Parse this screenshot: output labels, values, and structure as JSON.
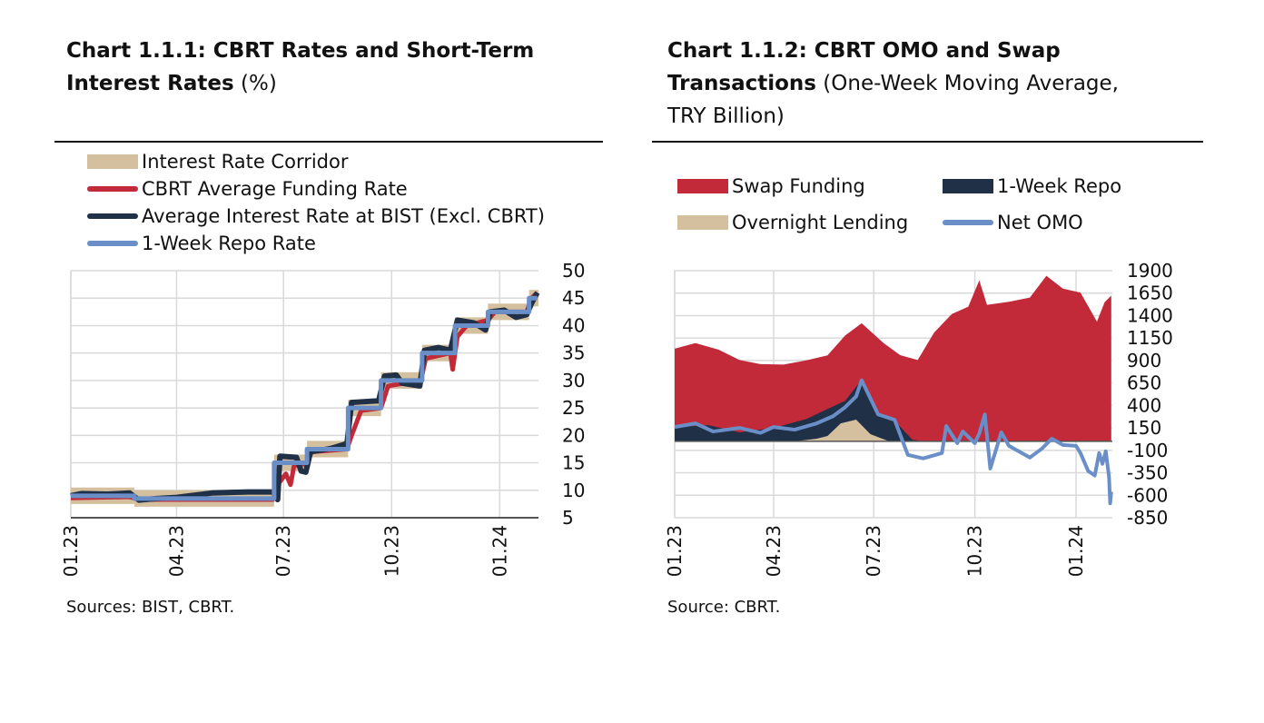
{
  "colors": {
    "corridor": "#d4c09e",
    "funding": "#c22a3a",
    "bist": "#203046",
    "repo_rate": "#6a8fc8",
    "swap": "#c22a3a",
    "repo": "#203046",
    "overnight": "#d4c09e",
    "net_omo": "#6a8fc8",
    "grid": "#d9d9d9"
  },
  "chart_data": [
    {
      "type": "line",
      "title_bold": "Chart 1.1.1: CBRT Rates and Short-Term Interest Rates",
      "title_rest": " (%)",
      "source": "Sources: BIST, CBRT.",
      "ylim": [
        5,
        50
      ],
      "yticks": [
        "50",
        "45",
        "40",
        "35",
        "30",
        "25",
        "20",
        "15",
        "10",
        "5"
      ],
      "xlim": [
        "2023-01-01",
        "2024-02-03"
      ],
      "xticks": [
        {
          "date": "2023-01-01",
          "label": "01.23"
        },
        {
          "date": "2023-04-01",
          "label": "04.23"
        },
        {
          "date": "2023-07-01",
          "label": "07.23"
        },
        {
          "date": "2023-10-01",
          "label": "10.23"
        },
        {
          "date": "2024-01-01",
          "label": "01.24"
        }
      ],
      "grid": true,
      "legend_position": "top-left",
      "corridor": {
        "name": "Interest Rate Corridor",
        "bands": [
          {
            "from": "2023-01-01",
            "to": "2023-02-24",
            "low": 7.5,
            "high": 10.5
          },
          {
            "from": "2023-02-24",
            "to": "2023-06-23",
            "low": 7.0,
            "high": 10.0
          },
          {
            "from": "2023-06-23",
            "to": "2023-07-21",
            "low": 13.5,
            "high": 16.5
          },
          {
            "from": "2023-07-21",
            "to": "2023-08-25",
            "low": 16.0,
            "high": 19.0
          },
          {
            "from": "2023-08-25",
            "to": "2023-09-22",
            "low": 23.5,
            "high": 26.5
          },
          {
            "from": "2023-09-22",
            "to": "2023-10-27",
            "low": 28.5,
            "high": 31.5
          },
          {
            "from": "2023-10-27",
            "to": "2023-11-24",
            "low": 33.5,
            "high": 36.5
          },
          {
            "from": "2023-11-24",
            "to": "2023-12-22",
            "low": 38.5,
            "high": 41.5
          },
          {
            "from": "2023-12-22",
            "to": "2024-01-26",
            "low": 41.0,
            "high": 44.0
          },
          {
            "from": "2024-01-26",
            "to": "2024-02-03",
            "low": 43.5,
            "high": 46.5
          }
        ]
      },
      "series": [
        {
          "name": "CBRT Average Funding Rate",
          "points": [
            [
              "2023-01-01",
              8.6
            ],
            [
              "2023-02-20",
              8.8
            ],
            [
              "2023-03-01",
              8.3
            ],
            [
              "2023-06-22",
              8.3
            ],
            [
              "2023-06-26",
              11
            ],
            [
              "2023-07-03",
              13
            ],
            [
              "2023-07-07",
              11
            ],
            [
              "2023-07-10",
              14.5
            ],
            [
              "2023-07-20",
              14.8
            ],
            [
              "2023-07-25",
              17
            ],
            [
              "2023-08-24",
              17.5
            ],
            [
              "2023-08-28",
              20
            ],
            [
              "2023-09-05",
              24.5
            ],
            [
              "2023-09-22",
              25
            ],
            [
              "2023-09-28",
              29
            ],
            [
              "2023-10-26",
              30
            ],
            [
              "2023-10-30",
              34
            ],
            [
              "2023-11-20",
              35
            ],
            [
              "2023-11-22",
              32
            ],
            [
              "2023-11-26",
              38
            ],
            [
              "2023-12-04",
              40
            ],
            [
              "2023-12-22",
              41
            ],
            [
              "2023-12-28",
              42.5
            ],
            [
              "2024-01-24",
              42.5
            ],
            [
              "2024-01-28",
              45
            ],
            [
              "2024-02-02",
              46
            ]
          ]
        },
        {
          "name": "Average Interest Rate at BIST (Excl. CBRT)",
          "points": [
            [
              "2023-01-01",
              9
            ],
            [
              "2023-01-10",
              9.4
            ],
            [
              "2023-02-01",
              9.3
            ],
            [
              "2023-02-20",
              9.5
            ],
            [
              "2023-02-28",
              8.2
            ],
            [
              "2023-03-15",
              8.5
            ],
            [
              "2023-04-01",
              8.7
            ],
            [
              "2023-05-01",
              9.5
            ],
            [
              "2023-06-01",
              9.7
            ],
            [
              "2023-06-22",
              9.7
            ],
            [
              "2023-06-26",
              8.3
            ],
            [
              "2023-06-28",
              16.2
            ],
            [
              "2023-07-12",
              16
            ],
            [
              "2023-07-16",
              13.5
            ],
            [
              "2023-07-20",
              13.3
            ],
            [
              "2023-07-24",
              17
            ],
            [
              "2023-08-10",
              17.6
            ],
            [
              "2023-08-24",
              18.5
            ],
            [
              "2023-08-28",
              26
            ],
            [
              "2023-09-20",
              26.3
            ],
            [
              "2023-09-25",
              30.8
            ],
            [
              "2023-10-05",
              31
            ],
            [
              "2023-10-10",
              29.5
            ],
            [
              "2023-10-25",
              29
            ],
            [
              "2023-10-29",
              35.5
            ],
            [
              "2023-11-10",
              36
            ],
            [
              "2023-11-20",
              35.5
            ],
            [
              "2023-11-26",
              41
            ],
            [
              "2023-12-10",
              40.5
            ],
            [
              "2023-12-20",
              39.2
            ],
            [
              "2023-12-24",
              42.5
            ],
            [
              "2024-01-05",
              42.8
            ],
            [
              "2024-01-15",
              41.5
            ],
            [
              "2024-01-24",
              42
            ],
            [
              "2024-01-28",
              44
            ],
            [
              "2024-02-02",
              46
            ]
          ]
        },
        {
          "name": "1-Week Repo Rate",
          "step": true,
          "points": [
            [
              "2023-01-01",
              9
            ],
            [
              "2023-02-24",
              8.5
            ],
            [
              "2023-06-23",
              15
            ],
            [
              "2023-07-21",
              17.5
            ],
            [
              "2023-08-25",
              25
            ],
            [
              "2023-09-22",
              30
            ],
            [
              "2023-10-27",
              35
            ],
            [
              "2023-11-24",
              40
            ],
            [
              "2023-12-22",
              42.5
            ],
            [
              "2024-01-26",
              45
            ],
            [
              "2024-02-02",
              45
            ]
          ]
        }
      ]
    },
    {
      "type": "area",
      "title_bold_1": "Chart 1.1.2: CBRT OMO and Swap",
      "title_bold_2": "Transactions",
      "title_rest": " (One-Week Moving Average,",
      "title_line3": "TRY Billion)",
      "source": "Source: CBRT.",
      "ylim": [
        -850,
        1900
      ],
      "yticks": [
        "1900",
        "1650",
        "1400",
        "1150",
        "900",
        "650",
        "400",
        "150",
        "-100",
        "-350",
        "-600",
        "-850"
      ],
      "xlim": [
        "2023-01-01",
        "2024-02-03"
      ],
      "xticks": [
        {
          "date": "2023-01-01",
          "label": "01.23"
        },
        {
          "date": "2023-04-01",
          "label": "04.23"
        },
        {
          "date": "2023-07-01",
          "label": "07.23"
        },
        {
          "date": "2023-10-01",
          "label": "10.23"
        },
        {
          "date": "2024-01-01",
          "label": "01.24"
        }
      ],
      "grid": true,
      "legend_position": "top",
      "series": [
        {
          "name": "Swap Funding",
          "kind": "area",
          "points": [
            [
              "2023-01-01",
              1032
            ],
            [
              "2023-01-20",
              1094
            ],
            [
              "2023-02-10",
              1020
            ],
            [
              "2023-03-01",
              906
            ],
            [
              "2023-03-20",
              860
            ],
            [
              "2023-04-10",
              855
            ],
            [
              "2023-04-30",
              900
            ],
            [
              "2023-05-20",
              957
            ],
            [
              "2023-06-05",
              1179
            ],
            [
              "2023-06-20",
              1315
            ],
            [
              "2023-07-10",
              1094
            ],
            [
              "2023-07-25",
              960
            ],
            [
              "2023-08-10",
              906
            ],
            [
              "2023-08-25",
              1213
            ],
            [
              "2023-09-10",
              1417
            ],
            [
              "2023-09-25",
              1500
            ],
            [
              "2023-10-05",
              1792
            ],
            [
              "2023-10-12",
              1520
            ],
            [
              "2023-11-01",
              1554
            ],
            [
              "2023-11-20",
              1600
            ],
            [
              "2023-12-05",
              1843
            ],
            [
              "2023-12-20",
              1700
            ],
            [
              "2024-01-05",
              1656
            ],
            [
              "2024-01-20",
              1332
            ],
            [
              "2024-01-27",
              1550
            ],
            [
              "2024-02-02",
              1622
            ]
          ]
        },
        {
          "name": "1-Week Repo",
          "kind": "area",
          "points": [
            [
              "2023-01-01",
              157
            ],
            [
              "2023-02-01",
              180
            ],
            [
              "2023-03-01",
              100
            ],
            [
              "2023-04-01",
              150
            ],
            [
              "2023-05-01",
              250
            ],
            [
              "2023-05-20",
              361
            ],
            [
              "2023-06-05",
              450
            ],
            [
              "2023-06-20",
              685
            ],
            [
              "2023-07-05",
              300
            ],
            [
              "2023-07-20",
              230
            ],
            [
              "2023-08-05",
              20
            ],
            [
              "2023-08-15",
              0
            ],
            [
              "2024-02-02",
              0
            ]
          ]
        },
        {
          "name": "Overnight Lending",
          "kind": "area",
          "points": [
            [
              "2023-01-01",
              0
            ],
            [
              "2023-04-20",
              0
            ],
            [
              "2023-05-10",
              30
            ],
            [
              "2023-05-20",
              60
            ],
            [
              "2023-06-01",
              200
            ],
            [
              "2023-06-15",
              242
            ],
            [
              "2023-06-28",
              80
            ],
            [
              "2023-07-15",
              0
            ],
            [
              "2024-02-02",
              0
            ]
          ]
        },
        {
          "name": "Net OMO",
          "kind": "line",
          "points": [
            [
              "2023-01-01",
              160
            ],
            [
              "2023-01-20",
              200
            ],
            [
              "2023-02-05",
              110
            ],
            [
              "2023-03-01",
              150
            ],
            [
              "2023-03-20",
              95
            ],
            [
              "2023-04-01",
              160
            ],
            [
              "2023-04-20",
              130
            ],
            [
              "2023-05-10",
              200
            ],
            [
              "2023-05-25",
              280
            ],
            [
              "2023-06-05",
              380
            ],
            [
              "2023-06-15",
              500
            ],
            [
              "2023-06-20",
              680
            ],
            [
              "2023-07-05",
              300
            ],
            [
              "2023-07-20",
              240
            ],
            [
              "2023-08-01",
              -150
            ],
            [
              "2023-08-15",
              -190
            ],
            [
              "2023-09-01",
              -130
            ],
            [
              "2023-09-05",
              170
            ],
            [
              "2023-09-15",
              -20
            ],
            [
              "2023-09-20",
              110
            ],
            [
              "2023-10-01",
              -20
            ],
            [
              "2023-10-05",
              90
            ],
            [
              "2023-10-10",
              300
            ],
            [
              "2023-10-15",
              -303
            ],
            [
              "2023-10-25",
              100
            ],
            [
              "2023-11-01",
              -50
            ],
            [
              "2023-11-20",
              -180
            ],
            [
              "2023-12-01",
              -80
            ],
            [
              "2023-12-10",
              30
            ],
            [
              "2023-12-20",
              -40
            ],
            [
              "2024-01-01",
              -50
            ],
            [
              "2024-01-05",
              -130
            ],
            [
              "2024-01-12",
              -330
            ],
            [
              "2024-01-18",
              -380
            ],
            [
              "2024-01-22",
              -130
            ],
            [
              "2024-01-25",
              -250
            ],
            [
              "2024-01-28",
              -110
            ],
            [
              "2024-01-31",
              -400
            ],
            [
              "2024-02-01",
              -690
            ],
            [
              "2024-02-02",
              -560
            ]
          ]
        }
      ]
    }
  ]
}
